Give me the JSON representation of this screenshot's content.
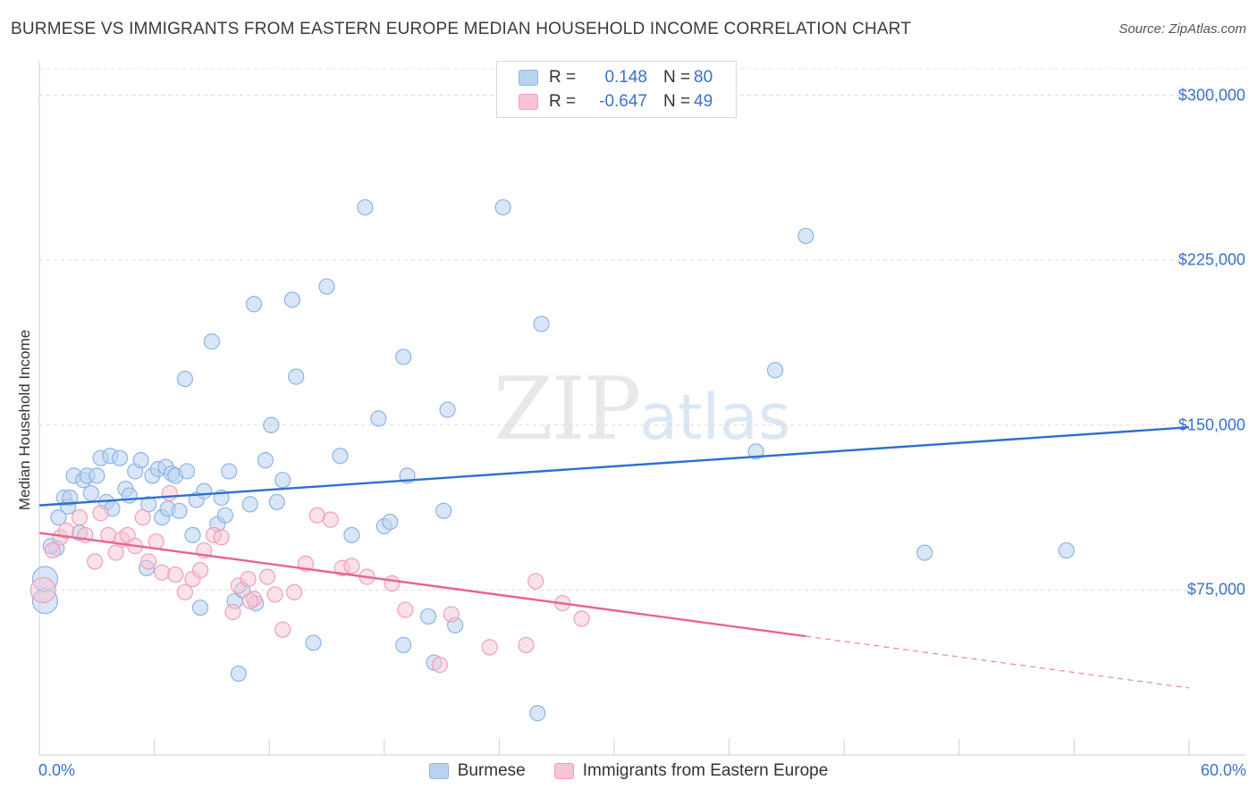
{
  "title": "BURMESE VS IMMIGRANTS FROM EASTERN EUROPE MEDIAN HOUSEHOLD INCOME CORRELATION CHART",
  "source": "Source: ZipAtlas.com",
  "watermark": {
    "zip": "ZIP",
    "atlas": "atlas"
  },
  "colors": {
    "blue": "#3a72c9",
    "blue_fill": "#b9d2f1",
    "pink": "#e8648f",
    "pink_fill": "#f7c4d3"
  },
  "legend": {
    "rows": [
      {
        "r_label": "R =",
        "r_value": "0.148",
        "n_label": "N =",
        "n_value": "80"
      },
      {
        "r_label": "R =",
        "r_value": "-0.647",
        "n_label": "N =",
        "n_value": "49"
      }
    ]
  },
  "chart_data": {
    "type": "scatter",
    "title": "BURMESE VS IMMIGRANTS FROM EASTERN EUROPE MEDIAN HOUSEHOLD INCOME CORRELATION CHART",
    "xlabel": "",
    "ylabel": "Median Household Income",
    "xlim": [
      0,
      60
    ],
    "ylim": [
      0,
      312000
    ],
    "x_tick_labels": [
      "0.0%",
      "60.0%"
    ],
    "y_ticks": [
      75000,
      150000,
      225000,
      300000
    ],
    "y_tick_labels": [
      "$75,000",
      "$150,000",
      "$225,000",
      "$300,000"
    ],
    "series": [
      {
        "name": "Burmese",
        "r": 0.148,
        "n": 80,
        "trend": {
          "x0": 0,
          "y0": 113500,
          "x1": 60,
          "y1": 149000
        },
        "points": [
          [
            0.3,
            70000
          ],
          [
            0.3,
            80000
          ],
          [
            0.9,
            94000
          ],
          [
            1.0,
            108000
          ],
          [
            1.3,
            117000
          ],
          [
            1.5,
            113000
          ],
          [
            1.6,
            117000
          ],
          [
            1.8,
            127000
          ],
          [
            2.1,
            101000
          ],
          [
            2.3,
            125000
          ],
          [
            2.5,
            127000
          ],
          [
            2.7,
            119000
          ],
          [
            3.0,
            127000
          ],
          [
            3.2,
            135000
          ],
          [
            3.5,
            115000
          ],
          [
            3.7,
            136000
          ],
          [
            3.8,
            112000
          ],
          [
            4.2,
            135000
          ],
          [
            4.5,
            121000
          ],
          [
            4.7,
            118000
          ],
          [
            5.0,
            129000
          ],
          [
            5.3,
            134000
          ],
          [
            5.6,
            85000
          ],
          [
            5.7,
            114000
          ],
          [
            5.9,
            127000
          ],
          [
            6.2,
            130000
          ],
          [
            6.4,
            108000
          ],
          [
            6.6,
            131000
          ],
          [
            6.7,
            112000
          ],
          [
            6.9,
            128000
          ],
          [
            7.1,
            127000
          ],
          [
            7.3,
            111000
          ],
          [
            7.6,
            171000
          ],
          [
            7.7,
            129000
          ],
          [
            8.0,
            100000
          ],
          [
            8.2,
            116000
          ],
          [
            8.4,
            67000
          ],
          [
            8.6,
            120000
          ],
          [
            9.0,
            188000
          ],
          [
            9.3,
            105000
          ],
          [
            9.5,
            117000
          ],
          [
            9.7,
            109000
          ],
          [
            9.9,
            129000
          ],
          [
            10.2,
            70000
          ],
          [
            10.4,
            37000
          ],
          [
            10.6,
            75000
          ],
          [
            11.0,
            114000
          ],
          [
            11.2,
            205000
          ],
          [
            11.3,
            69000
          ],
          [
            11.8,
            134000
          ],
          [
            12.1,
            150000
          ],
          [
            12.4,
            115000
          ],
          [
            12.7,
            125000
          ],
          [
            13.2,
            207000
          ],
          [
            13.4,
            172000
          ],
          [
            14.3,
            51000
          ],
          [
            15.0,
            213000
          ],
          [
            15.7,
            136000
          ],
          [
            16.3,
            100000
          ],
          [
            17.0,
            249000
          ],
          [
            17.7,
            153000
          ],
          [
            18.0,
            104000
          ],
          [
            18.3,
            106000
          ],
          [
            19.0,
            181000
          ],
          [
            19.2,
            127000
          ],
          [
            19.0,
            50000
          ],
          [
            20.3,
            63000
          ],
          [
            20.6,
            42000
          ],
          [
            21.1,
            111000
          ],
          [
            21.3,
            157000
          ],
          [
            21.7,
            59000
          ],
          [
            24.2,
            249000
          ],
          [
            26.0,
            19000
          ],
          [
            26.2,
            196000
          ],
          [
            37.4,
            138000
          ],
          [
            38.4,
            175000
          ],
          [
            40.0,
            236000
          ],
          [
            46.2,
            92000
          ],
          [
            53.6,
            93000
          ],
          [
            0.6,
            95000
          ]
        ]
      },
      {
        "name": "Immigrants from Eastern Europe",
        "r": -0.647,
        "n": 49,
        "trend": {
          "x0": 0,
          "y0": 101000,
          "x1": 40,
          "y1": 54000,
          "x_dash_end": 60,
          "y_dash_end": 30500
        },
        "points": [
          [
            0.2,
            75000
          ],
          [
            0.7,
            93000
          ],
          [
            1.1,
            99000
          ],
          [
            1.4,
            102000
          ],
          [
            2.1,
            108000
          ],
          [
            2.4,
            100000
          ],
          [
            2.9,
            88000
          ],
          [
            3.2,
            110000
          ],
          [
            3.6,
            100000
          ],
          [
            4.0,
            92000
          ],
          [
            4.3,
            98000
          ],
          [
            4.6,
            100000
          ],
          [
            5.0,
            95000
          ],
          [
            5.4,
            108000
          ],
          [
            5.7,
            88000
          ],
          [
            6.1,
            97000
          ],
          [
            6.4,
            83000
          ],
          [
            6.8,
            119000
          ],
          [
            7.1,
            82000
          ],
          [
            7.6,
            74000
          ],
          [
            8.0,
            80000
          ],
          [
            8.4,
            84000
          ],
          [
            8.6,
            93000
          ],
          [
            9.1,
            100000
          ],
          [
            9.5,
            99000
          ],
          [
            10.1,
            65000
          ],
          [
            10.4,
            77000
          ],
          [
            10.9,
            80000
          ],
          [
            11.2,
            71000
          ],
          [
            11.9,
            81000
          ],
          [
            12.3,
            73000
          ],
          [
            12.7,
            57000
          ],
          [
            13.3,
            74000
          ],
          [
            13.9,
            87000
          ],
          [
            14.5,
            109000
          ],
          [
            15.2,
            107000
          ],
          [
            15.8,
            85000
          ],
          [
            16.3,
            86000
          ],
          [
            17.1,
            81000
          ],
          [
            18.4,
            78000
          ],
          [
            19.1,
            66000
          ],
          [
            20.9,
            41000
          ],
          [
            21.5,
            64000
          ],
          [
            23.5,
            49000
          ],
          [
            25.4,
            50000
          ],
          [
            25.9,
            79000
          ],
          [
            27.3,
            69000
          ],
          [
            28.3,
            62000
          ],
          [
            11.0,
            70000
          ]
        ]
      }
    ],
    "legend_position": "top-center"
  },
  "bottom_legend": [
    "Burmese",
    "Immigrants from Eastern Europe"
  ]
}
